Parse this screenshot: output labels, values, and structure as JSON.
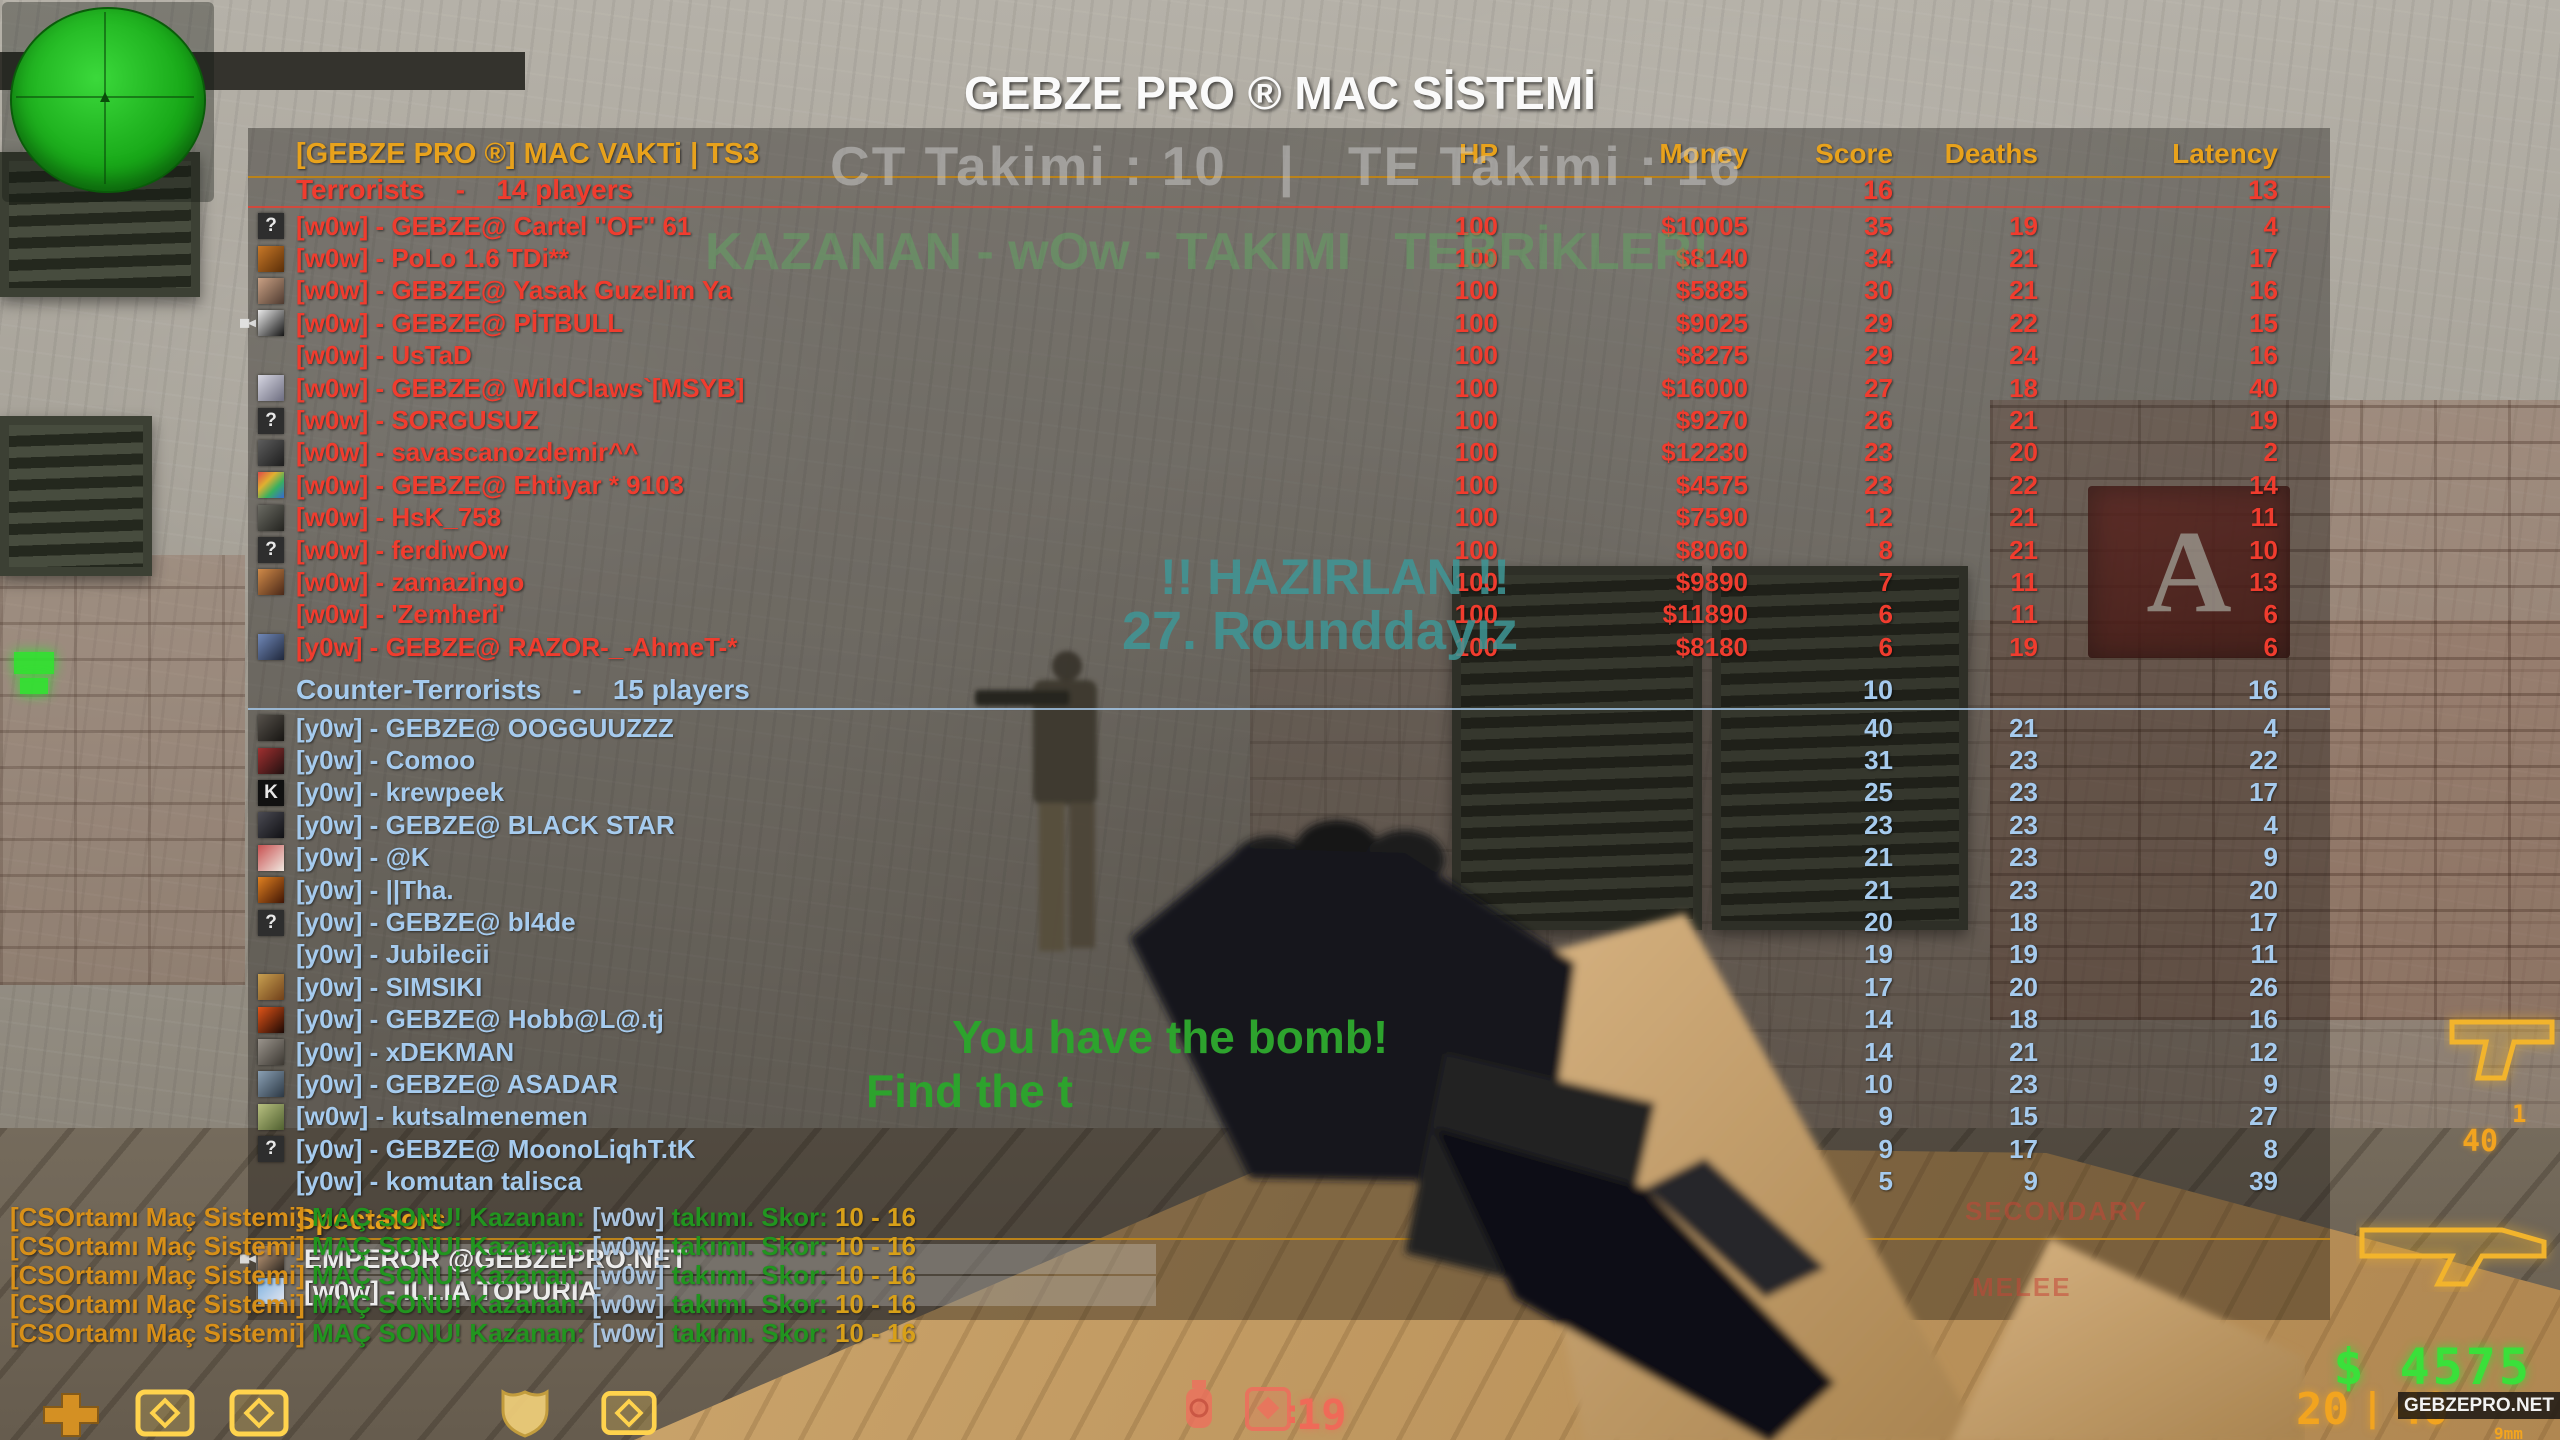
{
  "title": "GEBZE PRO ® MAC SİSTEMİ",
  "map": {
    "bombsite_letter": "A"
  },
  "colors": {
    "accent_gold": "#e8a21c",
    "terrorist_red": "#f03c2e",
    "ct_blue": "#a6cbee",
    "hud_green": "#3ae03a",
    "hud_orange": "#f2a41f",
    "hud_red": "#ef6a58",
    "console_green": "#2da32d",
    "console_teal": "#3e9696"
  },
  "overlays": {
    "match_score": "CT Takimi : 10   |   TE Takimi : 16",
    "winner": "KAZANAN - wOw - TAKIMI   TEBRİKLER!",
    "prepare": "!! HAZIRLAN !!",
    "round": "27. Rounddayız",
    "bomb_msg": "You have the bomb!",
    "find_msg": "Find the t"
  },
  "scoreboard": {
    "server_name": "[GEBZE PRO ®] MAC VAKTi | TS3",
    "columns": [
      "HP",
      "Money",
      "Score",
      "Deaths",
      "Latency"
    ],
    "teams": [
      {
        "name": "Terrorists",
        "label": "Terrorists    -    14 players",
        "score": "16",
        "latency": "13",
        "color": "#f03c2e",
        "players": [
          {
            "name": "[w0w] - GEBZE@ Cartel ''OF'' 61",
            "hp": "100",
            "money": "$10005",
            "score": "35",
            "deaths": "19",
            "latency": "4",
            "avatar": {
              "kind": "q",
              "bg": "#2e2e2e",
              "text": "?"
            }
          },
          {
            "name": "[w0w] - PoLo 1.6 TDi**",
            "hp": "100",
            "money": "$8140",
            "score": "34",
            "deaths": "21",
            "latency": "17",
            "avatar": {
              "kind": "img",
              "bg": "linear-gradient(135deg,#c87828,#5a2e08)",
              "text": ""
            }
          },
          {
            "name": "[w0w] - GEBZE@ Yasak Guzelim Ya",
            "hp": "100",
            "money": "$5885",
            "score": "30",
            "deaths": "21",
            "latency": "16",
            "avatar": {
              "kind": "img",
              "bg": "linear-gradient(135deg,#caa184,#4e3a30)",
              "text": ""
            }
          },
          {
            "name": "[w0w] - GEBZE@ PİTBULL",
            "hp": "100",
            "money": "$9025",
            "score": "29",
            "deaths": "22",
            "latency": "15",
            "watch": true,
            "avatar": {
              "kind": "img",
              "bg": "linear-gradient(135deg,#e9e9e9,#151515)",
              "text": ""
            }
          },
          {
            "name": "[w0w] - UsTaD",
            "hp": "100",
            "money": "$8275",
            "score": "29",
            "deaths": "24",
            "latency": "16",
            "avatar": {
              "kind": "none",
              "bg": "",
              "text": ""
            }
          },
          {
            "name": "[w0w] - GEBZE@ WildClaws`[MSYB]",
            "hp": "100",
            "money": "$16000",
            "score": "27",
            "deaths": "18",
            "latency": "40",
            "avatar": {
              "kind": "img",
              "bg": "linear-gradient(135deg,#d7d7e2,#6d6d80)",
              "text": ""
            }
          },
          {
            "name": "[w0w] - SORGUSUZ",
            "hp": "100",
            "money": "$9270",
            "score": "26",
            "deaths": "21",
            "latency": "19",
            "avatar": {
              "kind": "q",
              "bg": "#2e2e2e",
              "text": "?"
            }
          },
          {
            "name": "[w0w] - savascanozdemir^^",
            "hp": "100",
            "money": "$12230",
            "score": "23",
            "deaths": "20",
            "latency": "2",
            "avatar": {
              "kind": "img",
              "bg": "linear-gradient(135deg,#5c5c5c,#1d1d1d)",
              "text": ""
            }
          },
          {
            "name": "[w0w] - GEBZE@ Ehtiyar * 9103",
            "hp": "100",
            "money": "$4575",
            "score": "23",
            "deaths": "22",
            "latency": "14",
            "avatar": {
              "kind": "img",
              "bg": "linear-gradient(135deg,#e04848 0%,#e0b030 35%,#38b060 65%,#3868d0 100%)",
              "text": ""
            }
          },
          {
            "name": "[w0w] - HsK_758",
            "hp": "100",
            "money": "$7590",
            "score": "12",
            "deaths": "21",
            "latency": "11",
            "avatar": {
              "kind": "img",
              "bg": "linear-gradient(135deg,#6a6a62,#23231f)",
              "text": ""
            }
          },
          {
            "name": "[w0w] - ferdiwOw",
            "hp": "100",
            "money": "$8060",
            "score": "8",
            "deaths": "21",
            "latency": "10",
            "avatar": {
              "kind": "q",
              "bg": "#2e2e2e",
              "text": "?"
            }
          },
          {
            "name": "[w0w] - zamazingo",
            "hp": "100",
            "money": "$9890",
            "score": "7",
            "deaths": "11",
            "latency": "13",
            "avatar": {
              "kind": "img",
              "bg": "linear-gradient(135deg,#d08a48,#4a2818)",
              "text": ""
            }
          },
          {
            "name": "[w0w] - 'Zemheri'",
            "hp": "100",
            "money": "$11890",
            "score": "6",
            "deaths": "11",
            "latency": "6",
            "avatar": {
              "kind": "none",
              "bg": "",
              "text": ""
            }
          },
          {
            "name": "[y0w] - GEBZE@ RAZOR-_-AhmeT-*",
            "hp": "100",
            "money": "$8180",
            "score": "6",
            "deaths": "19",
            "latency": "6",
            "avatar": {
              "kind": "img",
              "bg": "linear-gradient(135deg,#7088b8,#20283c)",
              "text": ""
            }
          }
        ]
      },
      {
        "name": "Counter-Terrorists",
        "label": "Counter-Terrorists    -    15 players",
        "score": "10",
        "latency": "16",
        "color": "#a6cbee",
        "players": [
          {
            "name": "[y0w] - GEBZE@ OOGGUUZZZ",
            "hp": "",
            "money": "",
            "score": "40",
            "deaths": "21",
            "latency": "4",
            "avatar": {
              "kind": "img",
              "bg": "linear-gradient(135deg,#55504a,#171512)",
              "text": ""
            }
          },
          {
            "name": "[y0w] - Comoo",
            "hp": "",
            "money": "",
            "score": "31",
            "deaths": "23",
            "latency": "22",
            "avatar": {
              "kind": "img",
              "bg": "linear-gradient(135deg,#a03030,#201010)",
              "text": ""
            }
          },
          {
            "name": "[y0w] - krewpeek",
            "hp": "",
            "money": "",
            "score": "25",
            "deaths": "23",
            "latency": "17",
            "avatar": {
              "kind": "q",
              "bg": "#111111",
              "text": "K"
            }
          },
          {
            "name": "[y0w] - GEBZE@ BLACK STAR",
            "hp": "",
            "money": "",
            "score": "23",
            "deaths": "23",
            "latency": "4",
            "avatar": {
              "kind": "img",
              "bg": "linear-gradient(135deg,#4a4a52,#101014)",
              "text": ""
            }
          },
          {
            "name": "[y0w] - @K",
            "hp": "",
            "money": "",
            "score": "21",
            "deaths": "23",
            "latency": "9",
            "avatar": {
              "kind": "img",
              "bg": "linear-gradient(135deg,#c85050,#f0e8e0)",
              "text": ""
            }
          },
          {
            "name": "[y0w] - ||Tha.",
            "hp": "",
            "money": "",
            "score": "21",
            "deaths": "23",
            "latency": "20",
            "avatar": {
              "kind": "img",
              "bg": "linear-gradient(135deg,#e08020,#401505)",
              "text": ""
            }
          },
          {
            "name": "[y0w] - GEBZE@ bl4de",
            "hp": "",
            "money": "",
            "score": "20",
            "deaths": "18",
            "latency": "17",
            "avatar": {
              "kind": "q",
              "bg": "#2e2e2e",
              "text": "?"
            }
          },
          {
            "name": "[y0w] - Jubilecii",
            "hp": "",
            "money": "",
            "score": "19",
            "deaths": "19",
            "latency": "11",
            "avatar": {
              "kind": "none",
              "bg": "",
              "text": ""
            }
          },
          {
            "name": "[y0w] - SIMSIKI",
            "hp": "",
            "money": "",
            "score": "17",
            "deaths": "20",
            "latency": "26",
            "avatar": {
              "kind": "img",
              "bg": "linear-gradient(135deg,#c8a050,#70401a)",
              "text": ""
            }
          },
          {
            "name": "[y0w] - GEBZE@ Hobb@L@.tj",
            "hp": "",
            "money": "",
            "score": "14",
            "deaths": "18",
            "latency": "16",
            "avatar": {
              "kind": "img",
              "bg": "linear-gradient(135deg,#e05418,#1c0804)",
              "text": ""
            }
          },
          {
            "name": "[y0w] - xDEKMAN",
            "hp": "",
            "money": "",
            "score": "14",
            "deaths": "21",
            "latency": "12",
            "avatar": {
              "kind": "img",
              "bg": "linear-gradient(135deg,#9a948c,#3c3832)",
              "text": ""
            }
          },
          {
            "name": "[y0w] - GEBZE@ ASADAR",
            "hp": "",
            "money": "",
            "score": "10",
            "deaths": "23",
            "latency": "9",
            "avatar": {
              "kind": "img",
              "bg": "linear-gradient(135deg,#8aa0b4,#2c3844)",
              "text": ""
            }
          },
          {
            "name": "[w0w] - kutsalmenemen",
            "hp": "",
            "money": "",
            "score": "9",
            "deaths": "15",
            "latency": "27",
            "avatar": {
              "kind": "img",
              "bg": "linear-gradient(135deg,#b8c080,#506030)",
              "text": ""
            }
          },
          {
            "name": "[y0w] - GEBZE@ MoonoLiqhT.tK",
            "hp": "",
            "money": "",
            "score": "9",
            "deaths": "17",
            "latency": "8",
            "avatar": {
              "kind": "q",
              "bg": "#2e2e2e",
              "text": "?"
            }
          },
          {
            "name": "[y0w] - komutan talisca",
            "hp": "",
            "money": "",
            "score": "5",
            "deaths": "9",
            "latency": "39",
            "avatar": {
              "kind": "none",
              "bg": "",
              "text": ""
            }
          }
        ]
      }
    ],
    "spectators": {
      "label": "Spectators",
      "players": [
        {
          "name": "EMPEROR @GEBZEPRO.NET",
          "watch": true,
          "avatar": {
            "kind": "img",
            "bg": "linear-gradient(135deg,#caa37e,#2a2520)",
            "text": ""
          }
        },
        {
          "name": "[w0w] - ILLIA TOPURIA",
          "watch": false,
          "avatar": {
            "kind": "img",
            "bg": "linear-gradient(135deg,#7ab0e0,#e8e8f0)",
            "text": ""
          }
        }
      ]
    }
  },
  "chat": {
    "count": 5,
    "parts": [
      {
        "text": "[CSOrtamı Maç Sistemi]",
        "color": "#d89018"
      },
      {
        "text": " MAÇ SONU! Kazanan: ",
        "color": "#21951f"
      },
      {
        "text": "[w0w]",
        "color": "#a9c3de"
      },
      {
        "text": " takımı. Skor: ",
        "color": "#21951f"
      },
      {
        "text": "10 - 16",
        "color": "#d8a018"
      }
    ]
  },
  "hud": {
    "money": "$ 4575",
    "clip": "20",
    "divider": "|",
    "reserve": "40",
    "caliber": "9mm",
    "watermark": "GEBZEPRO.NET",
    "grenades": "19",
    "colon": ":",
    "slot_secondary": "SECONDARY",
    "slot_melee": "MELEE",
    "pickup_primary": "1",
    "pickup_ammo": "40"
  }
}
